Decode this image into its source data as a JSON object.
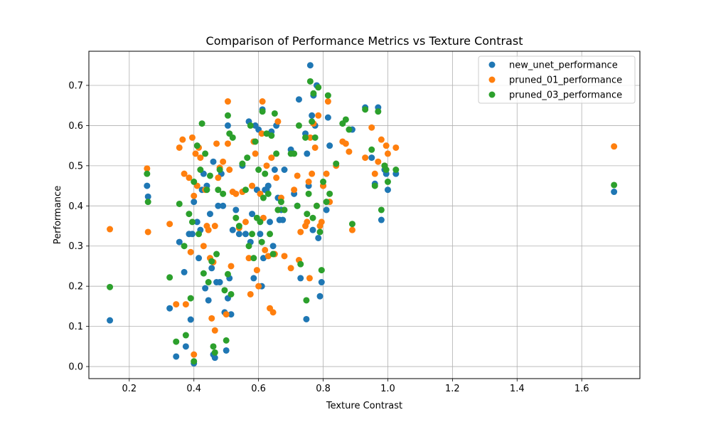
{
  "chart_data": {
    "type": "scatter",
    "title": "Comparison of Performance Metrics vs Texture Contrast",
    "xlabel": "Texture Contrast",
    "ylabel": "Performance",
    "xlim": [
      0.075,
      1.78
    ],
    "ylim": [
      -0.03,
      0.785
    ],
    "xticks": [
      0.2,
      0.4,
      0.6,
      0.8,
      1.0,
      1.2,
      1.4,
      1.6
    ],
    "xtick_labels": [
      "0.2",
      "0.4",
      "0.6",
      "0.8",
      "1.0",
      "1.2",
      "1.4",
      "1.6"
    ],
    "yticks": [
      0.0,
      0.1,
      0.2,
      0.3,
      0.4,
      0.5,
      0.6,
      0.7
    ],
    "ytick_labels": [
      "0.0",
      "0.1",
      "0.2",
      "0.3",
      "0.4",
      "0.5",
      "0.6",
      "0.7"
    ],
    "grid": true,
    "legend_position": "top-right",
    "series": [
      {
        "name": "new_unet_performance",
        "color": "#1f77b4",
        "points": [
          [
            0.14,
            0.115
          ],
          [
            0.255,
            0.45
          ],
          [
            0.258,
            0.423
          ],
          [
            0.325,
            0.145
          ],
          [
            0.345,
            0.025
          ],
          [
            0.355,
            0.31
          ],
          [
            0.37,
            0.235
          ],
          [
            0.375,
            0.05
          ],
          [
            0.385,
            0.33
          ],
          [
            0.39,
            0.117
          ],
          [
            0.395,
            0.33
          ],
          [
            0.4,
            0.008
          ],
          [
            0.4,
            0.41
          ],
          [
            0.41,
            0.36
          ],
          [
            0.415,
            0.27
          ],
          [
            0.42,
            0.34
          ],
          [
            0.425,
            0.44
          ],
          [
            0.43,
            0.48
          ],
          [
            0.435,
            0.195
          ],
          [
            0.44,
            0.45
          ],
          [
            0.445,
            0.165
          ],
          [
            0.45,
            0.38
          ],
          [
            0.455,
            0.245
          ],
          [
            0.46,
            0.03
          ],
          [
            0.46,
            0.51
          ],
          [
            0.465,
            0.022
          ],
          [
            0.47,
            0.21
          ],
          [
            0.475,
            0.4
          ],
          [
            0.48,
            0.21
          ],
          [
            0.485,
            0.48
          ],
          [
            0.49,
            0.4
          ],
          [
            0.495,
            0.135
          ],
          [
            0.5,
            0.04
          ],
          [
            0.505,
            0.17
          ],
          [
            0.505,
            0.6
          ],
          [
            0.51,
            0.22
          ],
          [
            0.515,
            0.13
          ],
          [
            0.52,
            0.34
          ],
          [
            0.53,
            0.39
          ],
          [
            0.54,
            0.33
          ],
          [
            0.55,
            0.5
          ],
          [
            0.56,
            0.33
          ],
          [
            0.57,
            0.61
          ],
          [
            0.575,
            0.31
          ],
          [
            0.58,
            0.38
          ],
          [
            0.585,
            0.22
          ],
          [
            0.59,
            0.6
          ],
          [
            0.595,
            0.44
          ],
          [
            0.6,
            0.59
          ],
          [
            0.605,
            0.33
          ],
          [
            0.61,
            0.2
          ],
          [
            0.612,
            0.64
          ],
          [
            0.615,
            0.27
          ],
          [
            0.62,
            0.44
          ],
          [
            0.625,
            0.44
          ],
          [
            0.63,
            0.45
          ],
          [
            0.635,
            0.36
          ],
          [
            0.64,
            0.585
          ],
          [
            0.645,
            0.3
          ],
          [
            0.65,
            0.49
          ],
          [
            0.655,
            0.6
          ],
          [
            0.66,
            0.42
          ],
          [
            0.665,
            0.365
          ],
          [
            0.67,
            0.39
          ],
          [
            0.675,
            0.365
          ],
          [
            0.68,
            0.49
          ],
          [
            0.7,
            0.54
          ],
          [
            0.71,
            0.43
          ],
          [
            0.72,
            0.4
          ],
          [
            0.725,
            0.665
          ],
          [
            0.73,
            0.22
          ],
          [
            0.745,
            0.58
          ],
          [
            0.748,
            0.118
          ],
          [
            0.75,
            0.53
          ],
          [
            0.755,
            0.45
          ],
          [
            0.76,
            0.75
          ],
          [
            0.765,
            0.625
          ],
          [
            0.768,
            0.34
          ],
          [
            0.77,
            0.675
          ],
          [
            0.775,
            0.6
          ],
          [
            0.78,
            0.7
          ],
          [
            0.785,
            0.32
          ],
          [
            0.79,
            0.175
          ],
          [
            0.795,
            0.21
          ],
          [
            0.8,
            0.45
          ],
          [
            0.81,
            0.39
          ],
          [
            0.815,
            0.62
          ],
          [
            0.82,
            0.55
          ],
          [
            0.89,
            0.59
          ],
          [
            0.93,
            0.645
          ],
          [
            0.95,
            0.52
          ],
          [
            0.96,
            0.455
          ],
          [
            0.97,
            0.645
          ],
          [
            0.98,
            0.365
          ],
          [
            0.99,
            0.49
          ],
          [
            0.995,
            0.48
          ],
          [
            1.0,
            0.44
          ],
          [
            1.025,
            0.48
          ],
          [
            1.7,
            0.435
          ]
        ]
      },
      {
        "name": "pruned_01_performance",
        "color": "#ff7f0e",
        "points": [
          [
            0.14,
            0.342
          ],
          [
            0.255,
            0.493
          ],
          [
            0.258,
            0.335
          ],
          [
            0.325,
            0.355
          ],
          [
            0.345,
            0.155
          ],
          [
            0.355,
            0.545
          ],
          [
            0.365,
            0.565
          ],
          [
            0.37,
            0.48
          ],
          [
            0.375,
            0.155
          ],
          [
            0.385,
            0.47
          ],
          [
            0.39,
            0.285
          ],
          [
            0.395,
            0.57
          ],
          [
            0.4,
            0.03
          ],
          [
            0.4,
            0.425
          ],
          [
            0.405,
            0.53
          ],
          [
            0.41,
            0.45
          ],
          [
            0.415,
            0.545
          ],
          [
            0.42,
            0.52
          ],
          [
            0.43,
            0.3
          ],
          [
            0.435,
            0.44
          ],
          [
            0.44,
            0.35
          ],
          [
            0.445,
            0.34
          ],
          [
            0.45,
            0.27
          ],
          [
            0.455,
            0.12
          ],
          [
            0.46,
            0.26
          ],
          [
            0.465,
            0.09
          ],
          [
            0.465,
            0.35
          ],
          [
            0.47,
            0.555
          ],
          [
            0.475,
            0.47
          ],
          [
            0.48,
            0.495
          ],
          [
            0.49,
            0.51
          ],
          [
            0.5,
            0.13
          ],
          [
            0.505,
            0.555
          ],
          [
            0.505,
            0.66
          ],
          [
            0.51,
            0.49
          ],
          [
            0.515,
            0.25
          ],
          [
            0.52,
            0.435
          ],
          [
            0.53,
            0.43
          ],
          [
            0.54,
            0.345
          ],
          [
            0.55,
            0.435
          ],
          [
            0.56,
            0.36
          ],
          [
            0.57,
            0.27
          ],
          [
            0.575,
            0.18
          ],
          [
            0.58,
            0.45
          ],
          [
            0.585,
            0.56
          ],
          [
            0.59,
            0.53
          ],
          [
            0.595,
            0.24
          ],
          [
            0.6,
            0.2
          ],
          [
            0.605,
            0.43
          ],
          [
            0.61,
            0.58
          ],
          [
            0.612,
            0.66
          ],
          [
            0.615,
            0.37
          ],
          [
            0.62,
            0.29
          ],
          [
            0.625,
            0.5
          ],
          [
            0.63,
            0.275
          ],
          [
            0.635,
            0.145
          ],
          [
            0.64,
            0.52
          ],
          [
            0.645,
            0.135
          ],
          [
            0.65,
            0.28
          ],
          [
            0.655,
            0.47
          ],
          [
            0.66,
            0.61
          ],
          [
            0.67,
            0.42
          ],
          [
            0.68,
            0.275
          ],
          [
            0.7,
            0.245
          ],
          [
            0.71,
            0.44
          ],
          [
            0.72,
            0.475
          ],
          [
            0.725,
            0.265
          ],
          [
            0.73,
            0.335
          ],
          [
            0.745,
            0.35
          ],
          [
            0.75,
            0.36
          ],
          [
            0.755,
            0.46
          ],
          [
            0.758,
            0.22
          ],
          [
            0.76,
            0.57
          ],
          [
            0.765,
            0.48
          ],
          [
            0.77,
            0.605
          ],
          [
            0.775,
            0.545
          ],
          [
            0.78,
            0.4
          ],
          [
            0.785,
            0.625
          ],
          [
            0.79,
            0.35
          ],
          [
            0.795,
            0.36
          ],
          [
            0.8,
            0.45
          ],
          [
            0.81,
            0.48
          ],
          [
            0.815,
            0.66
          ],
          [
            0.82,
            0.41
          ],
          [
            0.84,
            0.5
          ],
          [
            0.86,
            0.56
          ],
          [
            0.87,
            0.555
          ],
          [
            0.88,
            0.535
          ],
          [
            0.89,
            0.34
          ],
          [
            0.93,
            0.52
          ],
          [
            0.95,
            0.595
          ],
          [
            0.96,
            0.48
          ],
          [
            0.97,
            0.51
          ],
          [
            0.98,
            0.565
          ],
          [
            0.99,
            0.5
          ],
          [
            0.995,
            0.55
          ],
          [
            1.0,
            0.53
          ],
          [
            1.025,
            0.545
          ],
          [
            1.7,
            0.548
          ]
        ]
      },
      {
        "name": "pruned_03_performance",
        "color": "#2ca02c",
        "points": [
          [
            0.14,
            0.198
          ],
          [
            0.255,
            0.48
          ],
          [
            0.258,
            0.41
          ],
          [
            0.325,
            0.222
          ],
          [
            0.345,
            0.062
          ],
          [
            0.355,
            0.405
          ],
          [
            0.37,
            0.3
          ],
          [
            0.375,
            0.078
          ],
          [
            0.385,
            0.38
          ],
          [
            0.39,
            0.17
          ],
          [
            0.395,
            0.36
          ],
          [
            0.4,
            0.013
          ],
          [
            0.4,
            0.46
          ],
          [
            0.41,
            0.55
          ],
          [
            0.415,
            0.33
          ],
          [
            0.42,
            0.49
          ],
          [
            0.425,
            0.605
          ],
          [
            0.43,
            0.232
          ],
          [
            0.435,
            0.53
          ],
          [
            0.44,
            0.44
          ],
          [
            0.445,
            0.21
          ],
          [
            0.45,
            0.475
          ],
          [
            0.455,
            0.262
          ],
          [
            0.46,
            0.05
          ],
          [
            0.465,
            0.035
          ],
          [
            0.47,
            0.28
          ],
          [
            0.475,
            0.44
          ],
          [
            0.48,
            0.49
          ],
          [
            0.49,
            0.43
          ],
          [
            0.495,
            0.19
          ],
          [
            0.5,
            0.065
          ],
          [
            0.505,
            0.23
          ],
          [
            0.505,
            0.625
          ],
          [
            0.51,
            0.58
          ],
          [
            0.515,
            0.18
          ],
          [
            0.52,
            0.57
          ],
          [
            0.53,
            0.37
          ],
          [
            0.54,
            0.35
          ],
          [
            0.55,
            0.505
          ],
          [
            0.56,
            0.44
          ],
          [
            0.565,
            0.52
          ],
          [
            0.57,
            0.3
          ],
          [
            0.575,
            0.6
          ],
          [
            0.58,
            0.33
          ],
          [
            0.585,
            0.27
          ],
          [
            0.59,
            0.56
          ],
          [
            0.595,
            0.37
          ],
          [
            0.6,
            0.49
          ],
          [
            0.605,
            0.36
          ],
          [
            0.61,
            0.31
          ],
          [
            0.612,
            0.635
          ],
          [
            0.615,
            0.42
          ],
          [
            0.62,
            0.48
          ],
          [
            0.625,
            0.58
          ],
          [
            0.63,
            0.43
          ],
          [
            0.635,
            0.33
          ],
          [
            0.64,
            0.575
          ],
          [
            0.645,
            0.28
          ],
          [
            0.65,
            0.63
          ],
          [
            0.655,
            0.53
          ],
          [
            0.66,
            0.39
          ],
          [
            0.67,
            0.41
          ],
          [
            0.68,
            0.39
          ],
          [
            0.7,
            0.53
          ],
          [
            0.71,
            0.53
          ],
          [
            0.72,
            0.4
          ],
          [
            0.725,
            0.6
          ],
          [
            0.73,
            0.255
          ],
          [
            0.745,
            0.57
          ],
          [
            0.748,
            0.165
          ],
          [
            0.75,
            0.38
          ],
          [
            0.755,
            0.43
          ],
          [
            0.76,
            0.71
          ],
          [
            0.765,
            0.61
          ],
          [
            0.768,
            0.37
          ],
          [
            0.77,
            0.68
          ],
          [
            0.775,
            0.57
          ],
          [
            0.78,
            0.4
          ],
          [
            0.785,
            0.695
          ],
          [
            0.79,
            0.335
          ],
          [
            0.795,
            0.24
          ],
          [
            0.8,
            0.46
          ],
          [
            0.81,
            0.41
          ],
          [
            0.815,
            0.675
          ],
          [
            0.82,
            0.43
          ],
          [
            0.84,
            0.505
          ],
          [
            0.86,
            0.605
          ],
          [
            0.87,
            0.615
          ],
          [
            0.88,
            0.59
          ],
          [
            0.89,
            0.355
          ],
          [
            0.93,
            0.64
          ],
          [
            0.95,
            0.54
          ],
          [
            0.96,
            0.45
          ],
          [
            0.97,
            0.635
          ],
          [
            0.98,
            0.39
          ],
          [
            0.99,
            0.5
          ],
          [
            0.995,
            0.49
          ],
          [
            1.0,
            0.46
          ],
          [
            1.025,
            0.49
          ],
          [
            1.7,
            0.452
          ]
        ]
      }
    ]
  }
}
